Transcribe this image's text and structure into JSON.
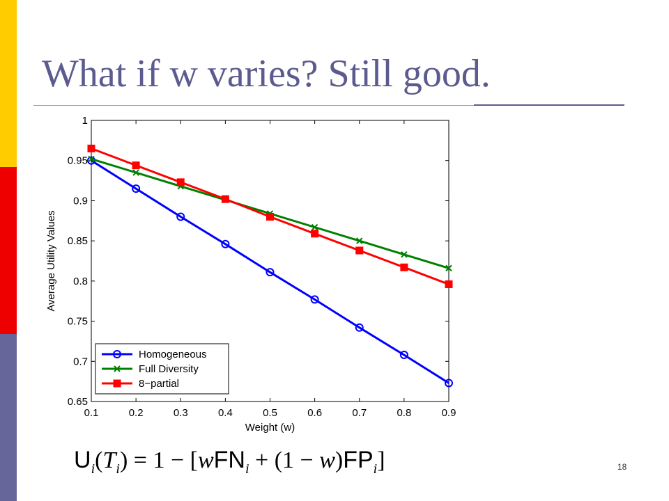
{
  "slide": {
    "title": "What if w varies? Still good.",
    "page_number": "18",
    "formula": {
      "lhs_symbol": "U",
      "lhs_sub": "i",
      "lhs_arg": "T",
      "lhs_arg_sub": "i",
      "one": "1",
      "w1": "w",
      "fn": "FN",
      "fn_sub": "i",
      "w2": "w",
      "fp": "FP",
      "fp_sub": "i"
    },
    "colors": {
      "title": "#5b5b8f",
      "bar_top": "#ffcc00",
      "bar_mid": "#ee0000",
      "bar_bottom": "#66669a"
    }
  },
  "chart_data": {
    "type": "line",
    "title": "",
    "xlabel": "Weight (w)",
    "ylabel": "Average Utility Values",
    "xlim": [
      0.1,
      0.9
    ],
    "ylim": [
      0.65,
      1
    ],
    "x": [
      0.1,
      0.2,
      0.3,
      0.4,
      0.5,
      0.6,
      0.7,
      0.8,
      0.9
    ],
    "x_tick_labels": [
      "0.1",
      "0.2",
      "0.3",
      "0.4",
      "0.5",
      "0.6",
      "0.7",
      "0.8",
      "0.9"
    ],
    "y_ticks": [
      0.65,
      0.7,
      0.75,
      0.8,
      0.85,
      0.9,
      0.95,
      1
    ],
    "y_tick_labels": [
      "0.65",
      "0.7",
      "0.75",
      "0.8",
      "0.85",
      "0.9",
      "0.95",
      "1"
    ],
    "grid": false,
    "legend_position": "bottom-left",
    "series": [
      {
        "name": "Homogeneous",
        "color": "#0000ff",
        "marker": "circle",
        "values": [
          0.95,
          0.915,
          0.88,
          0.846,
          0.811,
          0.777,
          0.742,
          0.708,
          0.673
        ]
      },
      {
        "name": "Full Diversity",
        "color": "#008000",
        "marker": "x",
        "values": [
          0.952,
          0.935,
          0.918,
          0.901,
          0.884,
          0.867,
          0.85,
          0.833,
          0.816
        ]
      },
      {
        "name": "8−partial",
        "color": "#ff0000",
        "marker": "square",
        "values": [
          0.965,
          0.944,
          0.923,
          0.902,
          0.88,
          0.859,
          0.838,
          0.817,
          0.796
        ]
      }
    ]
  }
}
